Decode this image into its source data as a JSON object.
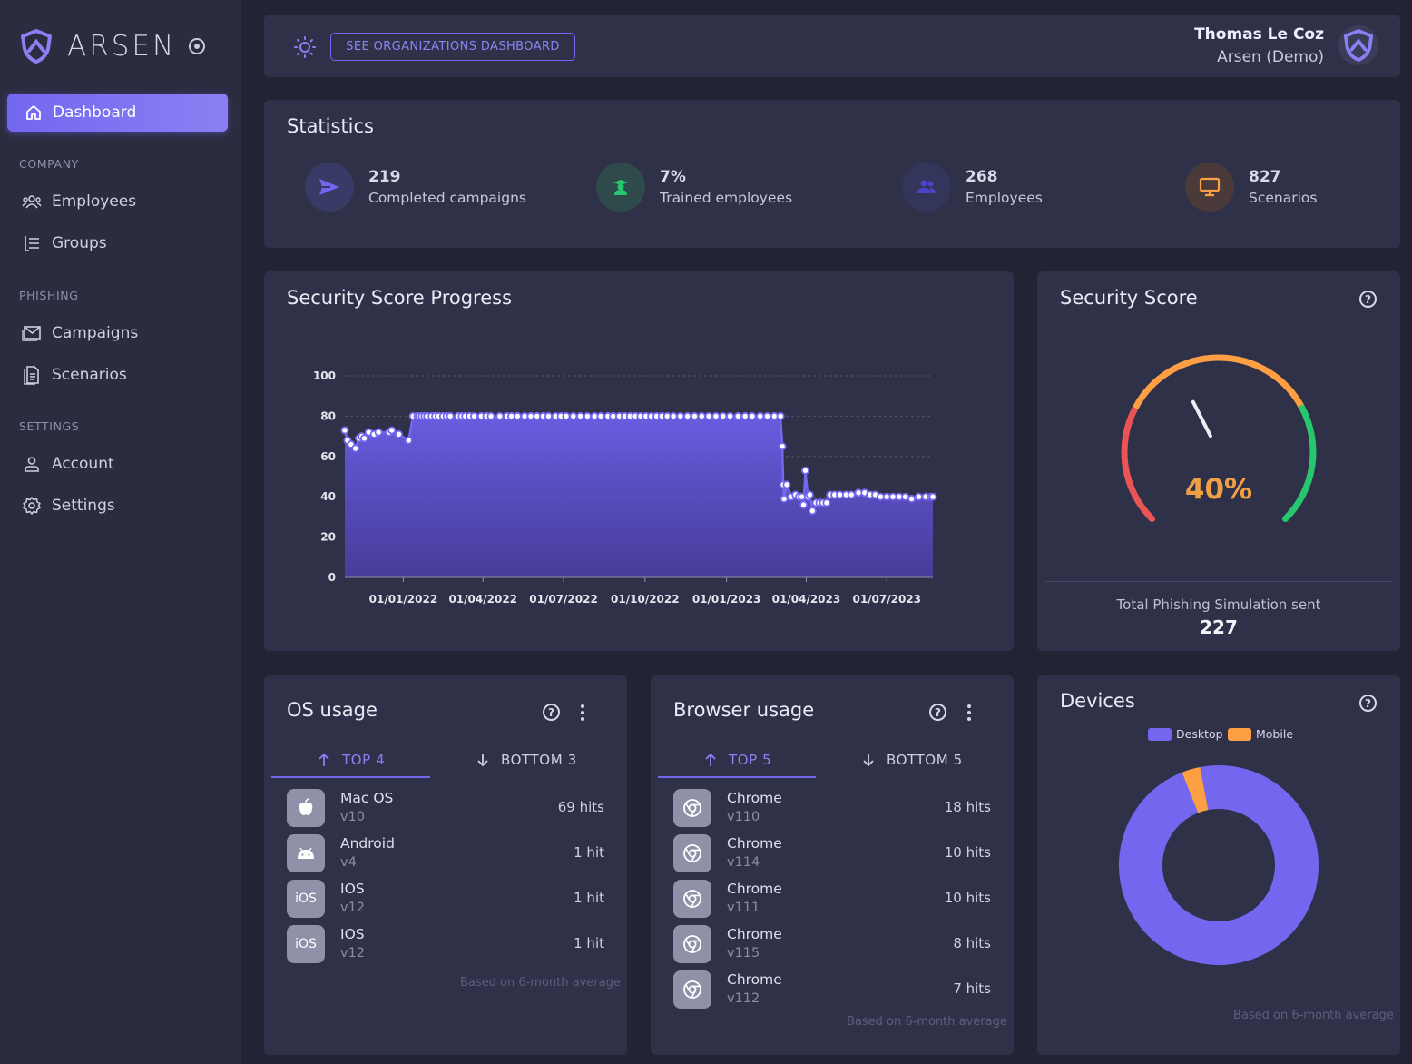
{
  "app": {
    "logo": "ARSEN"
  },
  "sidebar": {
    "active": "Dashboard",
    "sections": [
      {
        "title": "COMPANY",
        "items": [
          "Employees",
          "Groups"
        ]
      },
      {
        "title": "PHISHING",
        "items": [
          "Campaigns",
          "Scenarios"
        ]
      },
      {
        "title": "SETTINGS",
        "items": [
          "Account",
          "Settings"
        ]
      }
    ]
  },
  "header": {
    "button": "SEE ORGANIZATIONS DASHBOARD",
    "user_name": "Thomas Le Coz",
    "user_org": "Arsen (Demo)"
  },
  "statistics": {
    "title": "Statistics",
    "items": [
      {
        "value": "219",
        "label": "Completed campaigns",
        "icon": "send-icon",
        "color": "#7367f0"
      },
      {
        "value": "7%",
        "label": "Trained employees",
        "icon": "graduate-icon",
        "color": "#28c76f"
      },
      {
        "value": "268",
        "label": "Employees",
        "icon": "users-icon",
        "color": "#4b45c9"
      },
      {
        "value": "827",
        "label": "Scenarios",
        "icon": "monitor-icon",
        "color": "#ff9f43"
      }
    ]
  },
  "progress": {
    "title": "Security Score Progress"
  },
  "chart_data": {
    "type": "area",
    "title": "Security Score Progress",
    "ylim": [
      0,
      100
    ],
    "y_ticks": [
      "0",
      "20",
      "40",
      "60",
      "80",
      "100"
    ],
    "x_ticks": [
      "01/01/2022",
      "01/04/2022",
      "01/07/2022",
      "01/10/2022",
      "01/01/2023",
      "01/04/2023",
      "01/07/2023"
    ],
    "color": "#7367f0",
    "series": [
      {
        "x": [
          "2021-10-27",
          "2021-10-30",
          "2021-11-03",
          "2021-11-08",
          "2021-11-12",
          "2021-11-15",
          "2021-11-18",
          "2021-11-23",
          "2021-11-29",
          "2021-12-04",
          "2021-12-16",
          "2021-12-19",
          "2021-12-27",
          "2022-01-07",
          "2022-01-12",
          "2022-01-17",
          "2022-01-19",
          "2022-01-22",
          "2022-01-25",
          "2022-01-28",
          "2022-02-02",
          "2022-02-06",
          "2022-02-10",
          "2022-02-15",
          "2022-02-19",
          "2022-02-23",
          "2022-03-04",
          "2022-03-08",
          "2022-03-12",
          "2022-03-17",
          "2022-03-22",
          "2022-03-30",
          "2022-04-05",
          "2022-04-10",
          "2022-04-20",
          "2022-04-28",
          "2022-05-03",
          "2022-05-10",
          "2022-05-18",
          "2022-05-25",
          "2022-06-01",
          "2022-06-08",
          "2022-06-14",
          "2022-06-22",
          "2022-06-28",
          "2022-07-04",
          "2022-07-12",
          "2022-07-20",
          "2022-07-28",
          "2022-08-05",
          "2022-08-12",
          "2022-08-20",
          "2022-08-26",
          "2022-09-02",
          "2022-09-08",
          "2022-09-14",
          "2022-09-20",
          "2022-09-26",
          "2022-10-02",
          "2022-10-08",
          "2022-10-14",
          "2022-10-20",
          "2022-10-26",
          "2022-11-02",
          "2022-11-10",
          "2022-11-18",
          "2022-11-26",
          "2022-12-04",
          "2022-12-12",
          "2022-12-20",
          "2022-12-28",
          "2023-01-05",
          "2023-01-14",
          "2023-01-22",
          "2023-01-30",
          "2023-02-08",
          "2023-02-16",
          "2023-02-24",
          "2023-03-03",
          "2023-03-05",
          "2023-03-06",
          "2023-03-07",
          "2023-03-10",
          "2023-03-15",
          "2023-03-20",
          "2023-03-24",
          "2023-03-27",
          "2023-03-29",
          "2023-03-31",
          "2023-04-03",
          "2023-04-05",
          "2023-04-08",
          "2023-04-12",
          "2023-04-16",
          "2023-04-20",
          "2023-04-24",
          "2023-04-28",
          "2023-05-03",
          "2023-05-09",
          "2023-05-16",
          "2023-05-22",
          "2023-05-30",
          "2023-06-06",
          "2023-06-12",
          "2023-06-18",
          "2023-06-24",
          "2023-07-01",
          "2023-07-08",
          "2023-07-15",
          "2023-07-22",
          "2023-07-29",
          "2023-08-06",
          "2023-08-14",
          "2023-08-20",
          "2023-08-22"
        ],
        "y": [
          73,
          68,
          66,
          64,
          69,
          70,
          69,
          72,
          71,
          72,
          72,
          73,
          71,
          68,
          80,
          80,
          80,
          80,
          80,
          80,
          80,
          80,
          80,
          80,
          80,
          80,
          80,
          80,
          80,
          80,
          80,
          80,
          80,
          80,
          80,
          80,
          80,
          80,
          80,
          80,
          80,
          80,
          80,
          80,
          80,
          80,
          80,
          80,
          80,
          80,
          80,
          80,
          80,
          80,
          80,
          80,
          80,
          80,
          80,
          80,
          80,
          80,
          80,
          80,
          80,
          80,
          80,
          80,
          80,
          80,
          80,
          80,
          80,
          80,
          80,
          80,
          80,
          80,
          80,
          65,
          46,
          39,
          46,
          40,
          41,
          40,
          40,
          36,
          53,
          40,
          41,
          33,
          37,
          37,
          37,
          37,
          41,
          41,
          41,
          41,
          41,
          42,
          42,
          41,
          41,
          40,
          40,
          40,
          40,
          40,
          39,
          40,
          40,
          40,
          40
        ]
      }
    ]
  },
  "security_score": {
    "title": "Security Score",
    "value": 40,
    "label": "40%",
    "total_label": "Total Phishing Simulation sent",
    "total_value": "227",
    "colors": [
      "#ea5455",
      "#ff9f43",
      "#28c76f"
    ]
  },
  "os_usage": {
    "title": "OS usage",
    "tab_top": "TOP 4",
    "tab_bottom": "BOTTOM 3",
    "rows": [
      {
        "name": "Mac OS",
        "version": "v10",
        "hits": "69 hits",
        "icon": "apple-icon"
      },
      {
        "name": "Android",
        "version": "v4",
        "hits": "1 hit",
        "icon": "android-icon"
      },
      {
        "name": "IOS",
        "version": "v12",
        "hits": "1 hit",
        "icon": "ios-icon",
        "icon_text": "iOS"
      },
      {
        "name": "IOS",
        "version": "v12",
        "hits": "1 hit",
        "icon": "ios-icon",
        "icon_text": "iOS"
      }
    ],
    "note": "Based on 6-month average"
  },
  "browser_usage": {
    "title": "Browser usage",
    "tab_top": "TOP 5",
    "tab_bottom": "BOTTOM 5",
    "rows": [
      {
        "name": "Chrome",
        "version": "v110",
        "hits": "18 hits",
        "icon": "chrome-icon"
      },
      {
        "name": "Chrome",
        "version": "v114",
        "hits": "10 hits",
        "icon": "chrome-icon"
      },
      {
        "name": "Chrome",
        "version": "v111",
        "hits": "10 hits",
        "icon": "chrome-icon"
      },
      {
        "name": "Chrome",
        "version": "v115",
        "hits": "8 hits",
        "icon": "chrome-icon"
      },
      {
        "name": "Chrome",
        "version": "v112",
        "hits": "7 hits",
        "icon": "chrome-icon"
      }
    ],
    "note": "Based on 6-month average"
  },
  "devices": {
    "title": "Devices",
    "legend": [
      "Desktop",
      "Mobile"
    ],
    "colors": [
      "#7367f0",
      "#ff9f43"
    ],
    "values": [
      97,
      3
    ],
    "note": "Based on 6-month average"
  }
}
